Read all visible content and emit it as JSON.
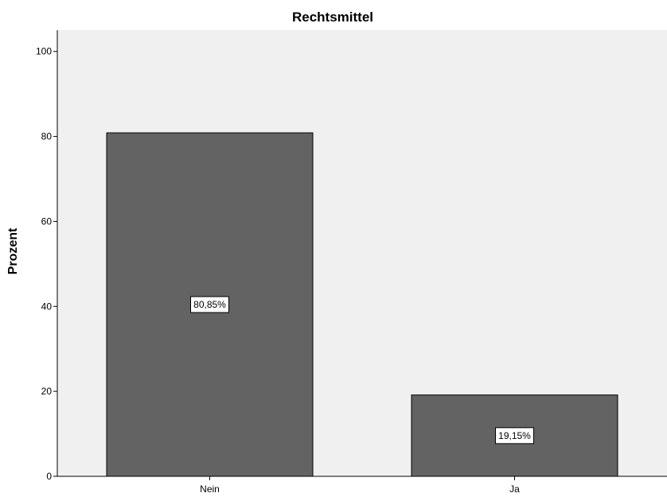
{
  "chart_data": {
    "type": "bar",
    "title": "Rechtsmittel",
    "xlabel": "",
    "ylabel": "Prozent",
    "categories": [
      "Nein",
      "Ja"
    ],
    "values": [
      80.85,
      19.15
    ],
    "data_labels": [
      "80,85%",
      "19,15%"
    ],
    "y_ticks": [
      0,
      20,
      40,
      60,
      80,
      100
    ],
    "ylim": [
      0,
      105
    ],
    "grid": false,
    "legend": "none",
    "bar_color": "#636363",
    "bar_stroke": "#000000",
    "plot_background": "#f0f0f0"
  }
}
